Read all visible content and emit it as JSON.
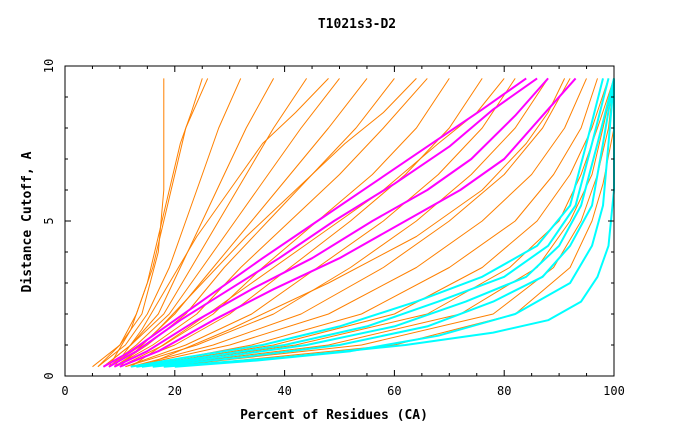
{
  "chart_data": {
    "type": "line",
    "title": "T1021s3-D2",
    "xlabel": "Percent of Residues (CA)",
    "ylabel": "Distance Cutoff, A",
    "xlim": [
      0,
      100
    ],
    "ylim": [
      0,
      10
    ],
    "x_ticks": [
      0,
      20,
      40,
      60,
      80,
      100
    ],
    "y_ticks": [
      0,
      5,
      10
    ],
    "grid": false,
    "legend": "none",
    "colors": {
      "orange": "#ff8000",
      "magenta": "#ff00ff",
      "cyan": "#00ffff",
      "axis": "#000000"
    },
    "series": [
      {
        "name": "orange-01",
        "color": "#ff8000",
        "x": [
          5,
          10,
          14,
          17,
          18,
          18,
          18
        ],
        "y": [
          0.3,
          1.0,
          2.0,
          4.0,
          6.0,
          8.0,
          9.6
        ]
      },
      {
        "name": "orange-02",
        "color": "#ff8000",
        "x": [
          6,
          10,
          13,
          16,
          18,
          20,
          22,
          26
        ],
        "y": [
          0.3,
          1.0,
          2.0,
          3.5,
          5.0,
          6.5,
          8.0,
          9.6
        ]
      },
      {
        "name": "orange-03",
        "color": "#ff8000",
        "x": [
          6,
          11,
          15,
          19,
          22,
          25,
          28,
          32
        ],
        "y": [
          0.3,
          1.0,
          2.0,
          3.5,
          5.0,
          6.5,
          8.0,
          9.6
        ]
      },
      {
        "name": "orange-04",
        "color": "#ff8000",
        "x": [
          7,
          12,
          17,
          21,
          25,
          29,
          33,
          38
        ],
        "y": [
          0.3,
          1.0,
          2.0,
          3.5,
          5.0,
          6.5,
          8.0,
          9.6
        ]
      },
      {
        "name": "orange-05",
        "color": "#ff8000",
        "x": [
          7,
          12,
          18,
          23,
          28,
          33,
          38,
          44
        ],
        "y": [
          0.3,
          1.0,
          2.0,
          3.5,
          5.0,
          6.5,
          8.0,
          9.6
        ]
      },
      {
        "name": "orange-06",
        "color": "#ff8000",
        "x": [
          8,
          13,
          19,
          25,
          31,
          37,
          43,
          50
        ],
        "y": [
          0.3,
          1.0,
          2.0,
          3.5,
          5.0,
          6.5,
          8.0,
          9.6
        ]
      },
      {
        "name": "orange-07",
        "color": "#ff8000",
        "x": [
          8,
          14,
          20,
          27,
          34,
          41,
          48,
          55
        ],
        "y": [
          0.3,
          1.0,
          2.0,
          3.5,
          5.0,
          6.5,
          8.0,
          9.6
        ]
      },
      {
        "name": "orange-08",
        "color": "#ff8000",
        "x": [
          9,
          15,
          22,
          29,
          37,
          45,
          53,
          60
        ],
        "y": [
          0.3,
          1.0,
          2.0,
          3.5,
          5.0,
          6.5,
          8.0,
          9.6
        ]
      },
      {
        "name": "orange-09",
        "color": "#ff8000",
        "x": [
          9,
          16,
          24,
          32,
          41,
          50,
          58,
          66
        ],
        "y": [
          0.3,
          1.0,
          2.0,
          3.5,
          5.0,
          6.5,
          8.0,
          9.6
        ]
      },
      {
        "name": "orange-10",
        "color": "#ff8000",
        "x": [
          10,
          18,
          27,
          36,
          46,
          56,
          64,
          70
        ],
        "y": [
          0.3,
          1.0,
          2.0,
          3.5,
          5.0,
          6.5,
          8.0,
          9.6
        ]
      },
      {
        "name": "orange-11",
        "color": "#ff8000",
        "x": [
          10,
          20,
          30,
          41,
          52,
          62,
          70,
          76
        ],
        "y": [
          0.3,
          1.0,
          2.0,
          3.5,
          5.0,
          6.5,
          8.0,
          9.6
        ]
      },
      {
        "name": "orange-12",
        "color": "#ff8000",
        "x": [
          11,
          22,
          34,
          46,
          58,
          68,
          76,
          82
        ],
        "y": [
          0.3,
          1.0,
          2.0,
          3.5,
          5.0,
          6.5,
          8.0,
          9.6
        ]
      },
      {
        "name": "orange-13",
        "color": "#ff8000",
        "x": [
          11,
          24,
          38,
          52,
          64,
          74,
          82,
          88
        ],
        "y": [
          0.3,
          1.0,
          2.0,
          3.5,
          5.0,
          6.5,
          8.0,
          9.6
        ]
      },
      {
        "name": "orange-14",
        "color": "#ff8000",
        "x": [
          12,
          27,
          43,
          58,
          70,
          80,
          87,
          92
        ],
        "y": [
          0.3,
          1.0,
          2.0,
          3.5,
          5.0,
          6.5,
          8.0,
          9.6
        ]
      },
      {
        "name": "orange-15",
        "color": "#ff8000",
        "x": [
          12,
          30,
          48,
          64,
          76,
          85,
          91,
          95
        ],
        "y": [
          0.3,
          1.0,
          2.0,
          3.5,
          5.0,
          6.5,
          8.0,
          9.6
        ]
      },
      {
        "name": "orange-16",
        "color": "#ff8000",
        "x": [
          13,
          34,
          54,
          70,
          82,
          89,
          94,
          97
        ],
        "y": [
          0.3,
          1.0,
          2.0,
          3.5,
          5.0,
          6.5,
          8.0,
          9.6
        ]
      },
      {
        "name": "orange-17",
        "color": "#ff8000",
        "x": [
          13,
          38,
          60,
          76,
          86,
          92,
          96,
          99
        ],
        "y": [
          0.3,
          1.0,
          2.0,
          3.5,
          5.0,
          6.5,
          8.0,
          9.6
        ]
      },
      {
        "name": "orange-18",
        "color": "#ff8000",
        "x": [
          14,
          42,
          66,
          81,
          90,
          94,
          97,
          100
        ],
        "y": [
          0.3,
          1.0,
          2.0,
          3.5,
          5.0,
          6.5,
          8.0,
          9.6
        ]
      },
      {
        "name": "orange-19",
        "color": "#ff8000",
        "x": [
          16,
          48,
          72,
          86,
          92,
          96,
          98,
          100
        ],
        "y": [
          0.3,
          1.0,
          2.0,
          3.5,
          5.0,
          6.5,
          8.0,
          9.6
        ]
      },
      {
        "name": "orange-20",
        "color": "#ff8000",
        "x": [
          18,
          54,
          78,
          89,
          94,
          97,
          99,
          100
        ],
        "y": [
          0.3,
          1.0,
          2.0,
          3.5,
          5.0,
          6.5,
          8.0,
          9.6
        ]
      },
      {
        "name": "orange-21",
        "color": "#ff8000",
        "x": [
          20,
          60,
          82,
          92,
          96,
          98,
          100,
          100
        ],
        "y": [
          0.3,
          1.0,
          2.0,
          3.5,
          5.0,
          6.2,
          8.0,
          9.6
        ]
      },
      {
        "name": "orange-22",
        "color": "#ff8000",
        "x": [
          8,
          12,
          15,
          17,
          19,
          21,
          23,
          25
        ],
        "y": [
          0.3,
          1.5,
          3.0,
          4.5,
          6.0,
          7.5,
          8.5,
          9.6
        ]
      },
      {
        "name": "orange-23",
        "color": "#ff8000",
        "x": [
          9,
          14,
          19,
          24,
          30,
          36,
          42,
          48
        ],
        "y": [
          0.3,
          1.5,
          3.0,
          4.5,
          6.0,
          7.5,
          8.5,
          9.6
        ]
      },
      {
        "name": "orange-24",
        "color": "#ff8000",
        "x": [
          10,
          17,
          25,
          33,
          42,
          51,
          58,
          64
        ],
        "y": [
          0.3,
          1.5,
          3.0,
          4.5,
          6.0,
          7.5,
          8.5,
          9.6
        ]
      },
      {
        "name": "orange-25",
        "color": "#ff8000",
        "x": [
          12,
          22,
          34,
          46,
          58,
          68,
          75,
          80
        ],
        "y": [
          0.3,
          1.5,
          3.0,
          4.5,
          6.0,
          7.5,
          8.5,
          9.6
        ]
      },
      {
        "name": "orange-26",
        "color": "#ff8000",
        "x": [
          14,
          30,
          48,
          64,
          76,
          84,
          88,
          91
        ],
        "y": [
          0.3,
          1.5,
          3.0,
          4.5,
          6.0,
          7.5,
          8.5,
          9.6
        ]
      },
      {
        "name": "magenta-1",
        "color": "#ff00ff",
        "x": [
          7,
          12,
          20,
          28,
          36,
          46,
          56,
          66,
          76,
          84
        ],
        "y": [
          0.3,
          0.8,
          1.8,
          2.8,
          3.8,
          5.0,
          6.2,
          7.4,
          8.6,
          9.6
        ]
      },
      {
        "name": "magenta-2",
        "color": "#ff00ff",
        "x": [
          8,
          13,
          21,
          30,
          39,
          49,
          60,
          70,
          78,
          86
        ],
        "y": [
          0.3,
          0.8,
          1.8,
          2.8,
          3.8,
          5.0,
          6.2,
          7.4,
          8.6,
          9.6
        ]
      },
      {
        "name": "magenta-3",
        "color": "#ff00ff",
        "x": [
          9,
          15,
          24,
          34,
          45,
          56,
          66,
          74,
          82,
          88
        ],
        "y": [
          0.3,
          0.8,
          1.8,
          2.8,
          3.8,
          5.0,
          6.0,
          7.0,
          8.4,
          9.6
        ]
      },
      {
        "name": "magenta-4",
        "color": "#ff00ff",
        "x": [
          10,
          17,
          27,
          38,
          50,
          62,
          72,
          80,
          87,
          93
        ],
        "y": [
          0.3,
          0.8,
          1.8,
          2.8,
          3.8,
          5.0,
          6.0,
          7.0,
          8.4,
          9.6
        ]
      },
      {
        "name": "cyan-1",
        "color": "#00ffff",
        "x": [
          12,
          22,
          36,
          50,
          64,
          76,
          86,
          92,
          95,
          98
        ],
        "y": [
          0.3,
          0.6,
          1.0,
          1.6,
          2.4,
          3.2,
          4.2,
          5.5,
          7.5,
          9.6
        ]
      },
      {
        "name": "cyan-2",
        "color": "#00ffff",
        "x": [
          13,
          25,
          40,
          55,
          68,
          80,
          88,
          93,
          96,
          99
        ],
        "y": [
          0.3,
          0.6,
          1.0,
          1.6,
          2.4,
          3.2,
          4.2,
          5.5,
          7.5,
          9.6
        ]
      },
      {
        "name": "cyan-3",
        "color": "#00ffff",
        "x": [
          14,
          28,
          44,
          60,
          73,
          84,
          90,
          94,
          97,
          100
        ],
        "y": [
          0.3,
          0.6,
          1.0,
          1.6,
          2.4,
          3.2,
          4.2,
          5.5,
          7.5,
          9.6
        ]
      },
      {
        "name": "cyan-4",
        "color": "#00ffff",
        "x": [
          16,
          32,
          50,
          66,
          78,
          87,
          92,
          96,
          98,
          100
        ],
        "y": [
          0.3,
          0.6,
          1.0,
          1.6,
          2.4,
          3.2,
          4.2,
          5.5,
          7.5,
          9.6
        ]
      },
      {
        "name": "cyan-5",
        "color": "#00ffff",
        "x": [
          18,
          40,
          62,
          78,
          88,
          94,
          97,
          99,
          100,
          100
        ],
        "y": [
          0.3,
          0.6,
          1.0,
          1.4,
          1.8,
          2.4,
          3.2,
          4.2,
          6.0,
          9.6
        ]
      },
      {
        "name": "cyan-6",
        "color": "#00ffff",
        "x": [
          20,
          35,
          52,
          68,
          82,
          92,
          96,
          98,
          99,
          100
        ],
        "y": [
          0.3,
          0.5,
          0.8,
          1.3,
          2.0,
          3.0,
          4.2,
          5.5,
          7.5,
          9.6
        ]
      }
    ]
  }
}
